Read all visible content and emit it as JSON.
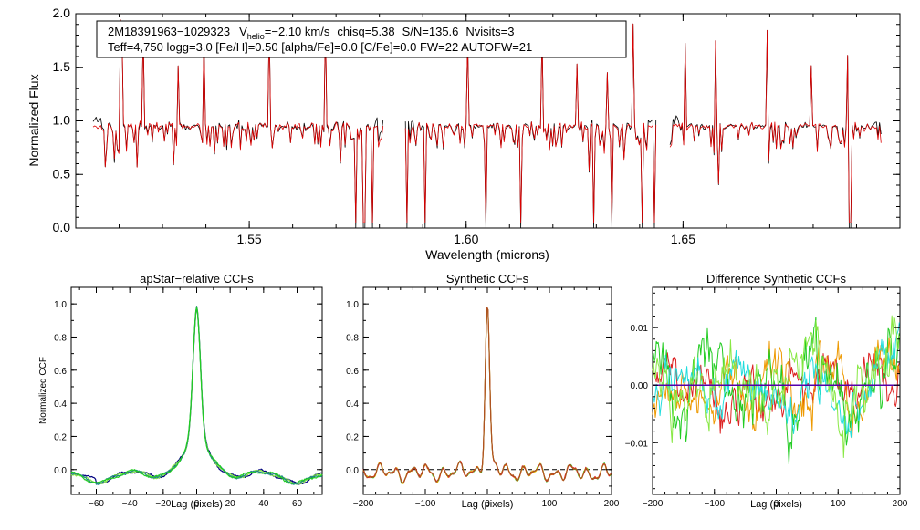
{
  "colors": {
    "observed": "#000000",
    "model": "#dd0000",
    "navy": "#000080",
    "green": "#22cc22",
    "lightgreen": "#88e844",
    "yellow": "#e8c800",
    "teal": "#228888",
    "cyan": "#22dddd",
    "red": "#dd2222",
    "brown": "#aa5522",
    "orange": "#ee9900",
    "purple": "#5500aa"
  },
  "chart_data": [
    {
      "id": "spectrum",
      "type": "line",
      "title": "",
      "xlabel": "Wavelength (microns)",
      "ylabel": "Normalized Flux",
      "xlim": [
        1.51,
        1.7
      ],
      "ylim": [
        0.0,
        2.0
      ],
      "xticks": [
        1.55,
        1.6,
        1.65
      ],
      "xtick_labels": [
        "1.55",
        "1.60",
        "1.65"
      ],
      "yticks": [
        0.0,
        0.5,
        1.0,
        1.5,
        2.0
      ],
      "ytick_labels": [
        "0.0",
        "0.5",
        "1.0",
        "1.5",
        "2.0"
      ],
      "chip_ranges": [
        [
          1.514,
          1.581
        ],
        [
          1.586,
          1.644
        ],
        [
          1.647,
          1.696
        ]
      ],
      "continuum": 0.95,
      "emission_spikes": [
        1.5205,
        1.5255,
        1.5335,
        1.5395,
        1.5545,
        1.5675,
        1.6005,
        1.6175,
        1.6255,
        1.6325,
        1.6385,
        1.6455,
        1.6505,
        1.6575,
        1.6695,
        1.6795,
        1.688
      ],
      "deep_absorptions": [
        1.5745,
        1.5765,
        1.5785,
        1.5865,
        1.5905,
        1.6045,
        1.6125,
        1.6295,
        1.6335,
        1.6405,
        1.6435,
        1.6885
      ],
      "series": [
        {
          "name": "observed",
          "color_key": "observed"
        },
        {
          "name": "model",
          "color_key": "model"
        }
      ],
      "info": {
        "star_id": "2M18391963−1029323",
        "vhelio_prefix": "V",
        "vhelio_sub": "helio",
        "vhelio_value": "=−2.10 km/s",
        "chisq": "chisq=5.38",
        "snr": "S/N=135.6",
        "nvisits": "Nvisits=3",
        "params": "Teff=4,750 logg=3.0 [Fe/H]=0.50 [alpha/Fe]=0.0 [C/Fe]=0.0 FW=22 AUTOFW=21"
      }
    },
    {
      "id": "apstar_ccf",
      "type": "line",
      "title": "apStar−relative CCFs",
      "xlabel": "Lag (pixels)",
      "ylabel": "Normalized CCF",
      "xlim": [
        -75,
        75
      ],
      "ylim": [
        -0.15,
        1.1
      ],
      "xticks": [
        -60,
        -40,
        -20,
        0,
        20,
        40,
        60
      ],
      "xtick_labels": [
        "−60",
        "−40",
        "−20",
        "0",
        "20",
        "40",
        "60"
      ],
      "yticks": [
        0.0,
        0.2,
        0.4,
        0.6,
        0.8,
        1.0
      ],
      "ytick_labels": [
        "0.0",
        "0.2",
        "0.4",
        "0.6",
        "0.8",
        "1.0"
      ],
      "peak_value": 1.0,
      "series": [
        {
          "name": "ccf1",
          "color_key": "navy"
        },
        {
          "name": "ccf2",
          "color_key": "lightgreen"
        },
        {
          "name": "ccf3",
          "color_key": "teal"
        },
        {
          "name": "ccf4",
          "color_key": "green"
        }
      ]
    },
    {
      "id": "synthetic_ccf",
      "type": "line",
      "title": "Synthetic CCFs",
      "xlabel": "Lag (pixels)",
      "ylabel": "",
      "xlim": [
        -200,
        200
      ],
      "ylim": [
        -0.15,
        1.1
      ],
      "xticks": [
        -200,
        -100,
        0,
        100,
        200
      ],
      "xtick_labels": [
        "−200",
        "−100",
        "0",
        "100",
        "200"
      ],
      "yticks": [
        0.0,
        0.2,
        0.4,
        0.6,
        0.8,
        1.0
      ],
      "ytick_labels": [
        "0.0",
        "0.2",
        "0.4",
        "0.6",
        "0.8",
        "1.0"
      ],
      "peak_value": 1.0,
      "zero_line": 0.0,
      "series": [
        {
          "name": "ccf1",
          "color_key": "green"
        },
        {
          "name": "ccf2",
          "color_key": "yellow"
        },
        {
          "name": "ccf3",
          "color_key": "red"
        },
        {
          "name": "ccf4",
          "color_key": "brown"
        }
      ]
    },
    {
      "id": "diff_ccf",
      "type": "line",
      "title": "Difference Synthetic CCFs",
      "xlabel": "Lag (pixels)",
      "ylabel": "",
      "xlim": [
        -200,
        200
      ],
      "ylim": [
        -0.019,
        0.017
      ],
      "xticks": [
        -200,
        -100,
        0,
        100,
        200
      ],
      "xtick_labels": [
        "−200",
        "−100",
        "0",
        "100",
        "200"
      ],
      "yticks": [
        -0.01,
        0.0,
        0.01
      ],
      "ytick_labels": [
        "−0.01",
        "0.00",
        "0.01"
      ],
      "zero_line": 0.0,
      "series": [
        {
          "name": "diff1",
          "color_key": "red"
        },
        {
          "name": "diff2",
          "color_key": "orange"
        },
        {
          "name": "diff3",
          "color_key": "green"
        },
        {
          "name": "diff4",
          "color_key": "cyan"
        },
        {
          "name": "diff5",
          "color_key": "lightgreen"
        }
      ]
    }
  ]
}
